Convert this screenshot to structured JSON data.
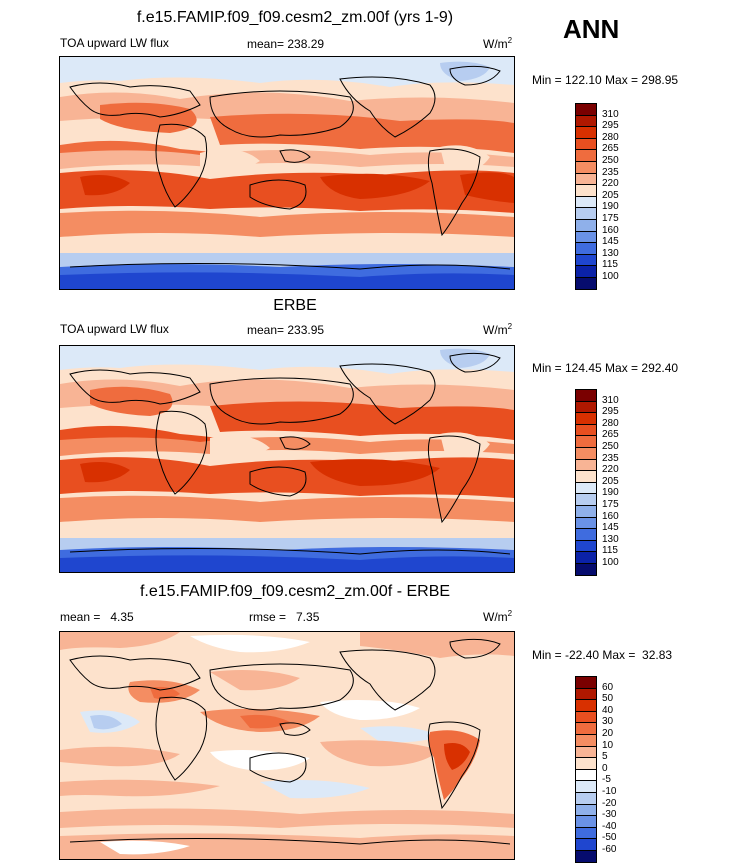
{
  "season_label": "ANN",
  "panels": [
    {
      "id": "model",
      "title": "f.e15.FAMIP.f09_f09.cesm2_zm.00f (yrs 1-9)",
      "left_label": "TOA upward LW flux",
      "mean_text": "mean= 238.29",
      "units": "W/m",
      "units_sup": "2",
      "minmax": "Min = 122.10 Max = 298.95",
      "levels": [
        "310",
        "295",
        "280",
        "265",
        "250",
        "235",
        "220",
        "205",
        "190",
        "175",
        "160",
        "145",
        "130",
        "115",
        "100"
      ],
      "colors": [
        "#7a0000",
        "#b01800",
        "#d83000",
        "#e84f20",
        "#ef6c3e",
        "#f48d62",
        "#f8b495",
        "#fde2cc",
        "#dce9f8",
        "#b7cdf0",
        "#8fb0ea",
        "#6a92e6",
        "#3f6cdf",
        "#1f46cf",
        "#0b22a8",
        "#060c6e"
      ]
    },
    {
      "id": "obs",
      "title": "ERBE",
      "left_label": "TOA upward LW flux",
      "mean_text": "mean= 233.95",
      "units": "W/m",
      "units_sup": "2",
      "minmax": "Min = 124.45 Max = 292.40",
      "levels": [
        "310",
        "295",
        "280",
        "265",
        "250",
        "235",
        "220",
        "205",
        "190",
        "175",
        "160",
        "145",
        "130",
        "115",
        "100"
      ],
      "colors": [
        "#7a0000",
        "#b01800",
        "#d83000",
        "#e84f20",
        "#ef6c3e",
        "#f48d62",
        "#f8b495",
        "#fde2cc",
        "#dce9f8",
        "#b7cdf0",
        "#8fb0ea",
        "#6a92e6",
        "#3f6cdf",
        "#1f46cf",
        "#0b22a8",
        "#060c6e"
      ]
    },
    {
      "id": "diff",
      "title": "f.e15.FAMIP.f09_f09.cesm2_zm.00f - ERBE",
      "left_label": "mean =   4.35",
      "center_label": "rmse =   7.35",
      "units": "W/m",
      "units_sup": "2",
      "minmax": "Min = -22.40 Max =  32.83",
      "levels": [
        "60",
        "50",
        "40",
        "30",
        "20",
        "10",
        "5",
        "0",
        "-5",
        "-10",
        "-20",
        "-30",
        "-40",
        "-50",
        "-60"
      ],
      "colors": [
        "#7a0000",
        "#b01800",
        "#d83000",
        "#e84f20",
        "#ef6c3e",
        "#f48d62",
        "#f8b495",
        "#fde2cc",
        "#ffffff",
        "#dce9f8",
        "#b7cdf0",
        "#8fb0ea",
        "#6a92e6",
        "#3f6cdf",
        "#1f46cf",
        "#060c6e"
      ]
    }
  ],
  "chart_data": [
    {
      "type": "heatmap",
      "title": "f.e15.FAMIP.f09_f09.cesm2_zm.00f (yrs 1-9)",
      "variable": "TOA upward LW flux",
      "units": "W/m2",
      "mean": 238.29,
      "min": 122.1,
      "max": 298.95,
      "contour_levels": [
        100,
        115,
        130,
        145,
        160,
        175,
        190,
        205,
        220,
        235,
        250,
        265,
        280,
        295,
        310
      ]
    },
    {
      "type": "heatmap",
      "title": "ERBE",
      "variable": "TOA upward LW flux",
      "units": "W/m2",
      "mean": 233.95,
      "min": 124.45,
      "max": 292.4,
      "contour_levels": [
        100,
        115,
        130,
        145,
        160,
        175,
        190,
        205,
        220,
        235,
        250,
        265,
        280,
        295,
        310
      ]
    },
    {
      "type": "heatmap",
      "title": "f.e15.FAMIP.f09_f09.cesm2_zm.00f - ERBE",
      "units": "W/m2",
      "mean": 4.35,
      "rmse": 7.35,
      "min": -22.4,
      "max": 32.83,
      "contour_levels": [
        -60,
        -50,
        -40,
        -30,
        -20,
        -10,
        -5,
        0,
        5,
        10,
        20,
        30,
        40,
        50,
        60
      ]
    }
  ]
}
